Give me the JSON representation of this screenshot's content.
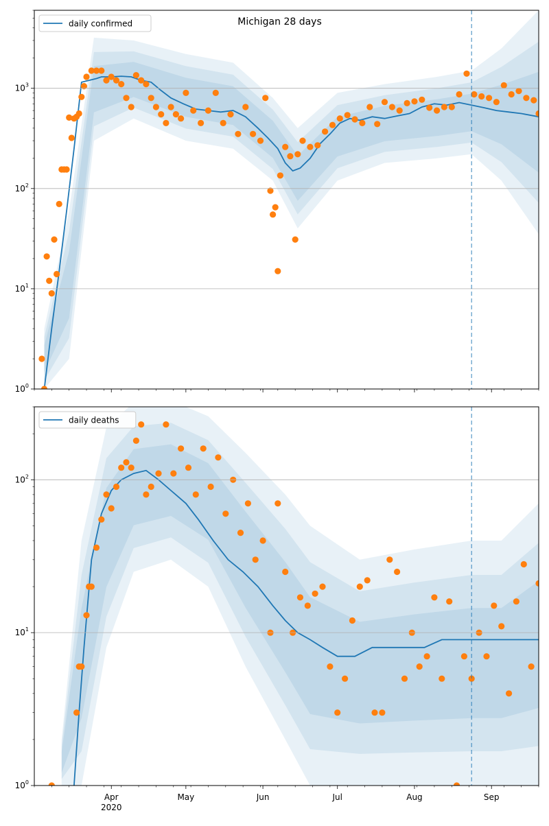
{
  "chart_data": [
    {
      "type": "line",
      "title": "Michigan 28 days",
      "xlabel": "",
      "ylabel": "",
      "y_scale": "log",
      "ylim": [
        1,
        6000
      ],
      "xlim": [
        "2020-03-01",
        "2020-09-20"
      ],
      "grid": "horizontal",
      "legend_position": "top-left",
      "forecast_start": "2020-08-24",
      "y_ticks": [
        {
          "label": "10",
          "sup": "0",
          "value": 1
        },
        {
          "label": "10",
          "sup": "1",
          "value": 10
        },
        {
          "label": "10",
          "sup": "2",
          "value": 100
        },
        {
          "label": "10",
          "sup": "3",
          "value": 1000
        }
      ],
      "series": [
        {
          "name": "daily confirmed",
          "kind": "line",
          "x": [
            "2020-03-05",
            "2020-03-08",
            "2020-03-11",
            "2020-03-14",
            "2020-03-17",
            "2020-03-20",
            "2020-03-23",
            "2020-03-26",
            "2020-03-28",
            "2020-04-01",
            "2020-04-05",
            "2020-04-09",
            "2020-04-13",
            "2020-04-17",
            "2020-04-21",
            "2020-04-25",
            "2020-04-30",
            "2020-05-05",
            "2020-05-10",
            "2020-05-15",
            "2020-05-20",
            "2020-05-25",
            "2020-05-30",
            "2020-06-03",
            "2020-06-07",
            "2020-06-10",
            "2020-06-13",
            "2020-06-16",
            "2020-06-20",
            "2020-06-24",
            "2020-06-28",
            "2020-07-02",
            "2020-07-06",
            "2020-07-10",
            "2020-07-15",
            "2020-07-20",
            "2020-07-25",
            "2020-07-30",
            "2020-08-04",
            "2020-08-09",
            "2020-08-14",
            "2020-08-19",
            "2020-08-24",
            "2020-08-29",
            "2020-09-03",
            "2020-09-08",
            "2020-09-13",
            "2020-09-20"
          ],
          "y": [
            1,
            4,
            15,
            60,
            250,
            1150,
            1200,
            1250,
            1300,
            1300,
            1320,
            1300,
            1200,
            1150,
            950,
            800,
            700,
            620,
            600,
            580,
            600,
            520,
            400,
            320,
            250,
            180,
            150,
            160,
            200,
            280,
            350,
            450,
            500,
            480,
            520,
            500,
            530,
            560,
            650,
            700,
            680,
            720,
            680,
            640,
            600,
            580,
            560,
            520
          ]
        },
        {
          "name": "",
          "kind": "scatter",
          "color": "#ff7f0e",
          "x": [
            "2020-03-04",
            "2020-03-05",
            "2020-03-06",
            "2020-03-07",
            "2020-03-08",
            "2020-03-09",
            "2020-03-10",
            "2020-03-11",
            "2020-03-12",
            "2020-03-13",
            "2020-03-14",
            "2020-03-15",
            "2020-03-16",
            "2020-03-17",
            "2020-03-18",
            "2020-03-19",
            "2020-03-20",
            "2020-03-21",
            "2020-03-22",
            "2020-03-24",
            "2020-03-26",
            "2020-03-28",
            "2020-03-30",
            "2020-04-01",
            "2020-04-03",
            "2020-04-05",
            "2020-04-07",
            "2020-04-09",
            "2020-04-11",
            "2020-04-13",
            "2020-04-15",
            "2020-04-17",
            "2020-04-19",
            "2020-04-21",
            "2020-04-23",
            "2020-04-25",
            "2020-04-27",
            "2020-04-29",
            "2020-05-01",
            "2020-05-04",
            "2020-05-07",
            "2020-05-10",
            "2020-05-13",
            "2020-05-16",
            "2020-05-19",
            "2020-05-22",
            "2020-05-25",
            "2020-05-28",
            "2020-05-31",
            "2020-06-02",
            "2020-06-04",
            "2020-06-05",
            "2020-06-06",
            "2020-06-07",
            "2020-06-08",
            "2020-06-10",
            "2020-06-12",
            "2020-06-14",
            "2020-06-15",
            "2020-06-17",
            "2020-06-20",
            "2020-06-23",
            "2020-06-26",
            "2020-06-29",
            "2020-07-02",
            "2020-07-05",
            "2020-07-08",
            "2020-07-11",
            "2020-07-14",
            "2020-07-17",
            "2020-07-20",
            "2020-07-23",
            "2020-07-26",
            "2020-07-29",
            "2020-08-01",
            "2020-08-04",
            "2020-08-07",
            "2020-08-10",
            "2020-08-13",
            "2020-08-16",
            "2020-08-19",
            "2020-08-22",
            "2020-08-25",
            "2020-08-28",
            "2020-08-31",
            "2020-09-03",
            "2020-09-06",
            "2020-09-09",
            "2020-09-12",
            "2020-09-15",
            "2020-09-18",
            "2020-09-20"
          ],
          "y": [
            2,
            1,
            21,
            12,
            9,
            31,
            14,
            70,
            155,
            155,
            155,
            510,
            320,
            500,
            520,
            560,
            820,
            1050,
            1300,
            1500,
            1500,
            1500,
            1200,
            1300,
            1200,
            1100,
            800,
            650,
            1350,
            1200,
            1100,
            800,
            650,
            550,
            450,
            650,
            550,
            500,
            900,
            600,
            450,
            600,
            900,
            450,
            550,
            350,
            650,
            350,
            300,
            800,
            95,
            55,
            65,
            15,
            135,
            260,
            210,
            31,
            220,
            300,
            260,
            270,
            370,
            430,
            500,
            540,
            490,
            450,
            650,
            440,
            730,
            650,
            600,
            710,
            740,
            770,
            640,
            600,
            650,
            650,
            870,
            1400,
            870,
            830,
            800,
            730,
            1070,
            870,
            940,
            800,
            760,
            560
          ]
        },
        {
          "name": "",
          "kind": "band",
          "x": [
            "2020-03-05",
            "2020-03-15",
            "2020-03-25",
            "2020-04-10",
            "2020-05-01",
            "2020-05-20",
            "2020-06-05",
            "2020-06-15",
            "2020-07-01",
            "2020-07-20",
            "2020-08-10",
            "2020-08-24",
            "2020-09-05",
            "2020-09-20"
          ],
          "low": [
            1,
            2,
            300,
            500,
            300,
            250,
            120,
            40,
            120,
            180,
            200,
            220,
            120,
            35
          ],
          "high": [
            4,
            60,
            3200,
            3000,
            2200,
            1800,
            800,
            400,
            900,
            1100,
            1300,
            1500,
            2500,
            6000
          ]
        }
      ]
    },
    {
      "type": "line",
      "title": "",
      "xlabel": "",
      "ylabel": "",
      "y_scale": "log",
      "ylim": [
        1,
        300
      ],
      "xlim": [
        "2020-03-01",
        "2020-09-20"
      ],
      "grid": "horizontal",
      "legend_position": "top-left",
      "forecast_start": "2020-08-24",
      "y_ticks": [
        {
          "label": "10",
          "sup": "0",
          "value": 1
        },
        {
          "label": "10",
          "sup": "1",
          "value": 10
        },
        {
          "label": "10",
          "sup": "2",
          "value": 100
        }
      ],
      "x_ticks": [
        {
          "label": "Apr",
          "sublabel": "2020",
          "value": "2020-04-01"
        },
        {
          "label": "May",
          "sublabel": "",
          "value": "2020-05-01"
        },
        {
          "label": "Jun",
          "sublabel": "",
          "value": "2020-06-01"
        },
        {
          "label": "Jul",
          "sublabel": "",
          "value": "2020-07-01"
        },
        {
          "label": "Aug",
          "sublabel": "",
          "value": "2020-08-01"
        },
        {
          "label": "Sep",
          "sublabel": "",
          "value": "2020-09-01"
        }
      ],
      "series": [
        {
          "name": "daily deaths",
          "kind": "line",
          "x": [
            "2020-03-17",
            "2020-03-19",
            "2020-03-21",
            "2020-03-24",
            "2020-03-28",
            "2020-04-01",
            "2020-04-05",
            "2020-04-10",
            "2020-04-15",
            "2020-04-20",
            "2020-04-25",
            "2020-05-01",
            "2020-05-06",
            "2020-05-12",
            "2020-05-18",
            "2020-05-24",
            "2020-05-30",
            "2020-06-05",
            "2020-06-10",
            "2020-06-15",
            "2020-06-20",
            "2020-06-25",
            "2020-07-01",
            "2020-07-08",
            "2020-07-15",
            "2020-07-22",
            "2020-07-30",
            "2020-08-05",
            "2020-08-12",
            "2020-08-18",
            "2020-08-24",
            "2020-09-01",
            "2020-09-08",
            "2020-09-15",
            "2020-09-20"
          ],
          "y": [
            1,
            3,
            8,
            30,
            60,
            85,
            100,
            110,
            115,
            100,
            85,
            70,
            55,
            40,
            30,
            25,
            20,
            15,
            12,
            10,
            9,
            8,
            7,
            7,
            8,
            8,
            8,
            8,
            9,
            9,
            9,
            9,
            9,
            9,
            9
          ]
        },
        {
          "name": "",
          "kind": "scatter",
          "color": "#ff7f0e",
          "x": [
            "2020-03-08",
            "2020-03-18",
            "2020-03-19",
            "2020-03-20",
            "2020-03-22",
            "2020-03-23",
            "2020-03-24",
            "2020-03-26",
            "2020-03-28",
            "2020-03-30",
            "2020-04-01",
            "2020-04-03",
            "2020-04-05",
            "2020-04-07",
            "2020-04-09",
            "2020-04-11",
            "2020-04-13",
            "2020-04-15",
            "2020-04-17",
            "2020-04-20",
            "2020-04-23",
            "2020-04-26",
            "2020-04-29",
            "2020-05-02",
            "2020-05-05",
            "2020-05-08",
            "2020-05-11",
            "2020-05-14",
            "2020-05-17",
            "2020-05-20",
            "2020-05-23",
            "2020-05-26",
            "2020-05-29",
            "2020-06-01",
            "2020-06-04",
            "2020-06-07",
            "2020-06-10",
            "2020-06-13",
            "2020-06-16",
            "2020-06-19",
            "2020-06-22",
            "2020-06-25",
            "2020-06-28",
            "2020-07-01",
            "2020-07-04",
            "2020-07-07",
            "2020-07-10",
            "2020-07-13",
            "2020-07-16",
            "2020-07-19",
            "2020-07-22",
            "2020-07-25",
            "2020-07-28",
            "2020-07-31",
            "2020-08-03",
            "2020-08-06",
            "2020-08-09",
            "2020-08-12",
            "2020-08-15",
            "2020-08-18",
            "2020-08-21",
            "2020-08-24",
            "2020-08-27",
            "2020-08-30",
            "2020-09-02",
            "2020-09-05",
            "2020-09-08",
            "2020-09-11",
            "2020-09-14",
            "2020-09-17",
            "2020-09-20"
          ],
          "y": [
            1,
            3,
            6,
            6,
            13,
            20,
            20,
            36,
            55,
            80,
            65,
            90,
            120,
            130,
            120,
            180,
            230,
            80,
            90,
            110,
            230,
            110,
            160,
            120,
            80,
            160,
            90,
            140,
            60,
            100,
            45,
            70,
            30,
            40,
            10,
            70,
            25,
            10,
            17,
            15,
            18,
            20,
            6,
            3,
            5,
            12,
            20,
            22,
            3,
            3,
            30,
            25,
            5,
            10,
            6,
            7,
            17,
            5,
            16,
            1,
            7,
            5,
            10,
            7,
            15,
            11,
            4,
            16,
            28,
            6,
            21
          ]
        },
        {
          "name": "",
          "kind": "band",
          "x": [
            "2020-03-12",
            "2020-03-20",
            "2020-03-30",
            "2020-04-10",
            "2020-04-25",
            "2020-05-10",
            "2020-05-25",
            "2020-06-10",
            "2020-06-20",
            "2020-07-10",
            "2020-08-01",
            "2020-08-24",
            "2020-09-05",
            "2020-09-20"
          ],
          "low": [
            1,
            1,
            8,
            25,
            30,
            20,
            6,
            2,
            1,
            1,
            1,
            1,
            1,
            1
          ],
          "high": [
            2,
            40,
            220,
            320,
            330,
            260,
            150,
            80,
            50,
            30,
            35,
            40,
            40,
            70
          ]
        }
      ]
    }
  ]
}
